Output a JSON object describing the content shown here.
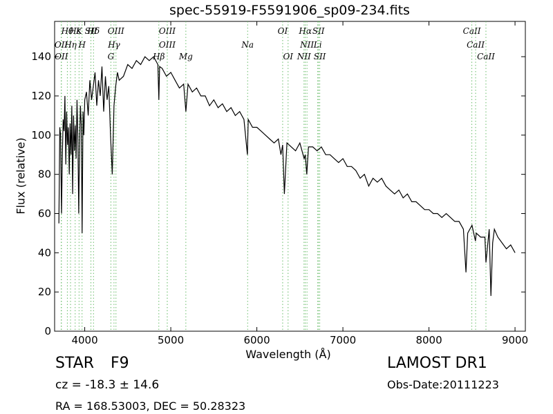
{
  "chart_data": {
    "type": "line",
    "title": "spec-55919-F5591906_sp09-234.fits",
    "xlabel": "Wavelength (Å)",
    "ylabel": "Flux (relative)",
    "xlim": [
      3650,
      9120
    ],
    "ylim": [
      0,
      158
    ],
    "xticks": [
      4000,
      5000,
      6000,
      7000,
      8000,
      9000
    ],
    "yticks": [
      0,
      20,
      40,
      60,
      80,
      100,
      120,
      140
    ],
    "grid": false,
    "series": [
      {
        "color": "#000000",
        "x": [
          3700,
          3710,
          3720,
          3730,
          3740,
          3750,
          3760,
          3770,
          3780,
          3790,
          3800,
          3810,
          3820,
          3830,
          3840,
          3850,
          3860,
          3870,
          3880,
          3890,
          3900,
          3910,
          3920,
          3930,
          3940,
          3950,
          3960,
          3970,
          3980,
          3990,
          4000,
          4020,
          4040,
          4060,
          4080,
          4100,
          4120,
          4140,
          4160,
          4180,
          4200,
          4220,
          4240,
          4260,
          4280,
          4300,
          4320,
          4340,
          4360,
          4380,
          4400,
          4450,
          4500,
          4550,
          4600,
          4650,
          4700,
          4750,
          4800,
          4850,
          4861,
          4870,
          4900,
          4950,
          5000,
          5050,
          5100,
          5150,
          5175,
          5200,
          5250,
          5300,
          5350,
          5400,
          5450,
          5500,
          5550,
          5600,
          5650,
          5700,
          5750,
          5800,
          5850,
          5890,
          5900,
          5950,
          6000,
          6050,
          6100,
          6150,
          6200,
          6250,
          6280,
          6300,
          6320,
          6350,
          6400,
          6450,
          6500,
          6550,
          6563,
          6580,
          6600,
          6650,
          6700,
          6750,
          6800,
          6850,
          6900,
          6950,
          7000,
          7050,
          7100,
          7150,
          7200,
          7250,
          7300,
          7350,
          7400,
          7450,
          7500,
          7550,
          7600,
          7650,
          7700,
          7750,
          7800,
          7850,
          7900,
          7950,
          8000,
          8050,
          8100,
          8150,
          8200,
          8250,
          8300,
          8350,
          8400,
          8430,
          8450,
          8500,
          8540,
          8550,
          8600,
          8650,
          8662,
          8700,
          8720,
          8740,
          8760,
          8800,
          8850,
          8900,
          8950,
          9000
        ],
        "values": [
          55,
          104,
          100,
          60,
          90,
          108,
          102,
          120,
          85,
          112,
          95,
          104,
          80,
          106,
          90,
          115,
          70,
          110,
          92,
          105,
          88,
          118,
          100,
          60,
          95,
          115,
          105,
          50,
          112,
          100,
          118,
          122,
          110,
          128,
          118,
          125,
          132,
          115,
          128,
          120,
          135,
          112,
          130,
          118,
          125,
          100,
          80,
          115,
          125,
          132,
          128,
          130,
          136,
          134,
          138,
          136,
          140,
          138,
          140,
          136,
          118,
          135,
          134,
          130,
          132,
          128,
          124,
          126,
          112,
          126,
          122,
          124,
          120,
          120,
          115,
          118,
          114,
          116,
          112,
          114,
          110,
          112,
          108,
          90,
          108,
          104,
          104,
          102,
          100,
          98,
          96,
          98,
          90,
          95,
          70,
          96,
          94,
          92,
          96,
          88,
          90,
          80,
          94,
          94,
          92,
          94,
          90,
          90,
          88,
          86,
          88,
          84,
          84,
          82,
          78,
          80,
          74,
          78,
          76,
          78,
          74,
          72,
          70,
          72,
          68,
          70,
          66,
          66,
          64,
          62,
          62,
          60,
          60,
          58,
          60,
          58,
          56,
          56,
          52,
          30,
          50,
          54,
          46,
          50,
          48,
          48,
          35,
          52,
          18,
          45,
          52,
          48,
          45,
          42,
          44,
          40
        ]
      }
    ],
    "line_markers": [
      {
        "label": "OII",
        "x": 3727,
        "row": 1
      },
      {
        "label": "Hθ",
        "x": 3798,
        "row": 0
      },
      {
        "label": "Hη",
        "x": 3835,
        "row": 1
      },
      {
        "label": "Hε",
        "x": 3889,
        "row": 0
      },
      {
        "label": "K",
        "x": 3934,
        "row": 0
      },
      {
        "label": "SII",
        "x": 4072,
        "row": 0
      },
      {
        "label": "H",
        "x": 3969,
        "row": 1
      },
      {
        "label": "OII",
        "x": 3729,
        "row": 2
      },
      {
        "label": "Hδ",
        "x": 4102,
        "row": 0
      },
      {
        "label": "OIII",
        "x": 4363,
        "row": 0
      },
      {
        "label": "Hγ",
        "x": 4340,
        "row": 1
      },
      {
        "label": "G",
        "x": 4304,
        "row": 2
      },
      {
        "label": "OIII",
        "x": 4959,
        "row": 0
      },
      {
        "label": "OIII",
        "x": 4959,
        "row": 1
      },
      {
        "label": "Hβ",
        "x": 4861,
        "row": 2
      },
      {
        "label": "Mg",
        "x": 5175,
        "row": 2
      },
      {
        "label": "Na",
        "x": 5893,
        "row": 1
      },
      {
        "label": "OI",
        "x": 6300,
        "row": 0
      },
      {
        "label": "OI",
        "x": 6363,
        "row": 2
      },
      {
        "label": "Hα",
        "x": 6563,
        "row": 0
      },
      {
        "label": "SII",
        "x": 6716,
        "row": 0
      },
      {
        "label": "NII",
        "x": 6583,
        "row": 1
      },
      {
        "label": "Li",
        "x": 6708,
        "row": 1
      },
      {
        "label": "NII",
        "x": 6548,
        "row": 2
      },
      {
        "label": "SII",
        "x": 6731,
        "row": 2
      },
      {
        "label": "CaII",
        "x": 8498,
        "row": 0
      },
      {
        "label": "CaII",
        "x": 8542,
        "row": 1
      },
      {
        "label": "CaII",
        "x": 8662,
        "row": 2
      }
    ]
  },
  "info": {
    "object_class": "STAR",
    "object_subclass": "F9",
    "survey": "LAMOST DR1",
    "redshift": "cz = -18.3 ± 14.6",
    "obs_date": "Obs-Date:20111223",
    "coords": "RA = 168.53003, DEC = 50.28323"
  },
  "colors": {
    "spectrum": "#000000",
    "marker_lines": "#66bb66"
  }
}
